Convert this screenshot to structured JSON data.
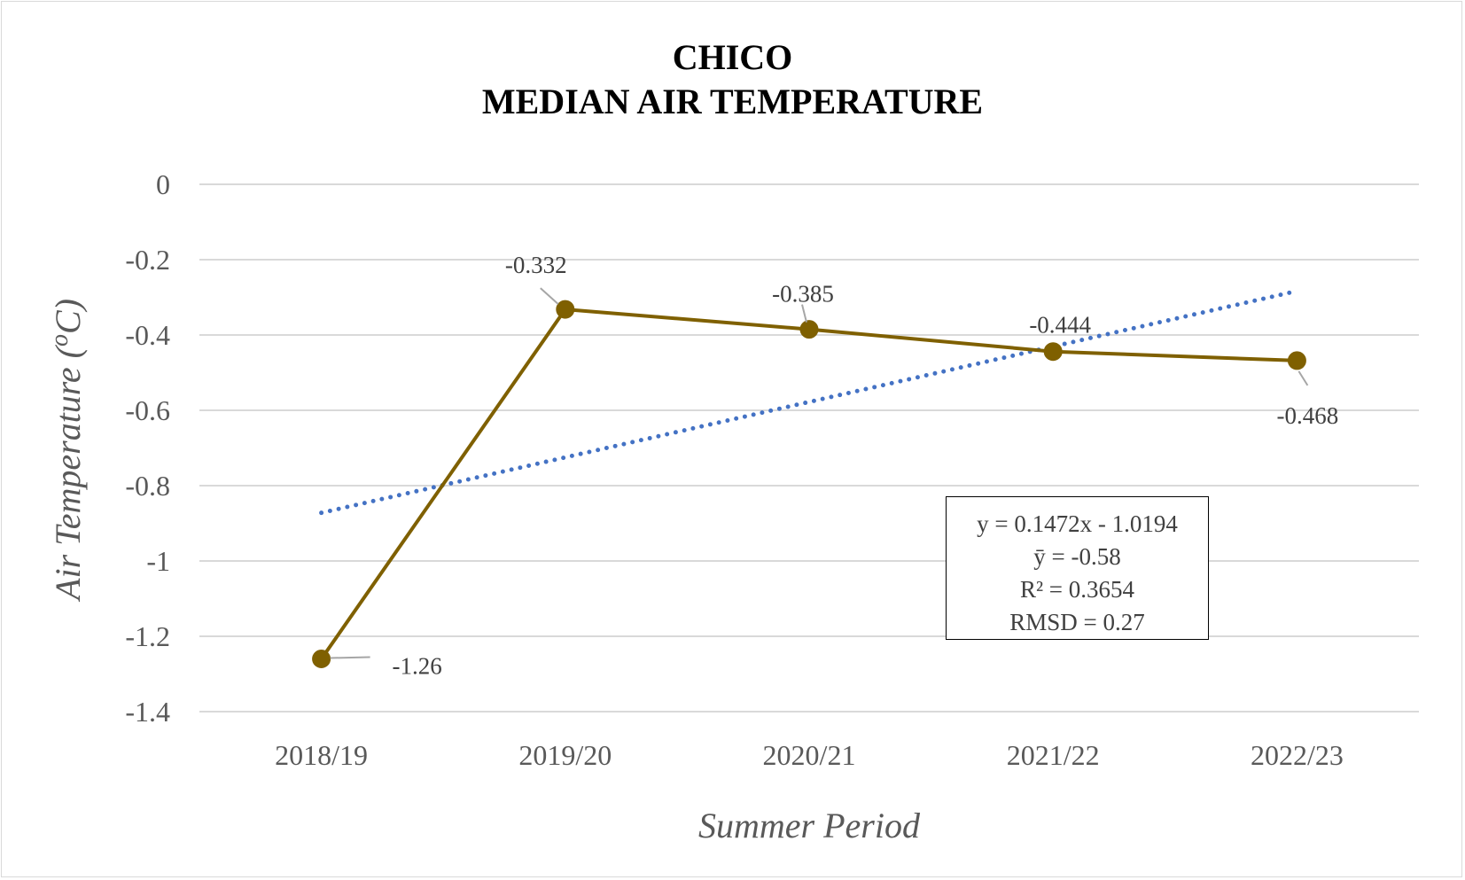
{
  "chart_data": {
    "type": "line",
    "title": [
      "CHICO",
      "MEDIAN AIR TEMPERATURE"
    ],
    "xlabel": "Summer Period",
    "ylabel": "Air Temperature (°C)",
    "categories": [
      "2018/19",
      "2019/20",
      "2020/21",
      "2021/22",
      "2022/23"
    ],
    "ylim": [
      -1.4,
      0
    ],
    "yticks": [
      0,
      -0.2,
      -0.4,
      -0.6,
      -0.8,
      -1,
      -1.2,
      -1.4
    ],
    "ytick_labels": [
      "0",
      "-0.2",
      "-0.4",
      "-0.6",
      "-0.8",
      "-1",
      "-1.2",
      "-1.4"
    ],
    "grid": true,
    "series": [
      {
        "values": [
          -1.26,
          -0.332,
          -0.385,
          -0.444,
          -0.468
        ],
        "data_labels": [
          "-1.26",
          "-0.332",
          "-0.385",
          "-0.444",
          "-0.468"
        ],
        "color": "#7f6000",
        "marker": "circle"
      }
    ],
    "trendline": {
      "type": "linear",
      "slope": 0.1472,
      "intercept": -1.0194,
      "color": "#4472c4",
      "style": "dotted"
    },
    "stats_box": [
      "y = 0.1472x - 1.0194",
      "ȳ = -0.58",
      "R² = 0.3654",
      "RMSD = 0.27"
    ]
  }
}
